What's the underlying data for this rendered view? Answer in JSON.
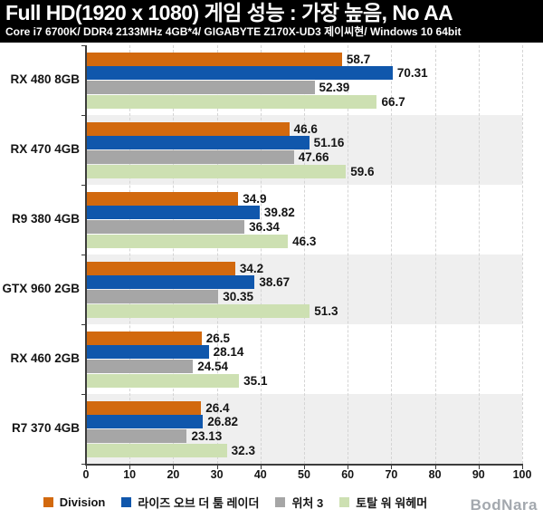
{
  "header": {
    "title": "Full HD(1920 x 1080) 게임 성능 : 가장 높음, No AA",
    "subtitle": "Core i7 6700K/ DDR4 2133MHz 4GB*4/ GIGABYTE Z170X-UD3 제이씨현/ Windows 10 64bit",
    "bg_color": "#000000",
    "text_color": "#ffffff"
  },
  "chart_data": {
    "type": "bar",
    "orientation": "horizontal",
    "title": "Full HD(1920 x 1080) 게임 성능 : 가장 높음, No AA",
    "categories": [
      "RX 480 8GB",
      "RX 470 4GB",
      "R9 380 4GB",
      "GTX 960 2GB",
      "RX 460 2GB",
      "R7 370 4GB"
    ],
    "series": [
      {
        "name": "Division",
        "color": "#d2690e",
        "values": [
          58.7,
          46.6,
          34.9,
          34.2,
          26.5,
          26.4
        ]
      },
      {
        "name": "라이즈 오브 더 툼 레이더",
        "color": "#1057ac",
        "values": [
          70.31,
          51.16,
          39.82,
          38.67,
          28.14,
          26.82
        ]
      },
      {
        "name": "위처 3",
        "color": "#a6a6a6",
        "values": [
          52.39,
          47.66,
          36.34,
          30.35,
          24.54,
          23.13
        ]
      },
      {
        "name": "토탈 워 워헤머",
        "color": "#cde0b2",
        "values": [
          66.7,
          59.6,
          46.3,
          51.3,
          35.1,
          32.3
        ]
      }
    ],
    "xlabel": "",
    "ylabel": "",
    "xlim": [
      0,
      100
    ],
    "x_ticks": [
      0,
      10,
      20,
      30,
      40,
      50,
      60,
      70,
      80,
      90,
      100
    ],
    "grid": "vertical-dashed",
    "gridline_color": "#d4d4d4",
    "band_colors": [
      "#ffffff",
      "#efefef"
    ],
    "axis_color": "#3c3c3c",
    "value_labels": true,
    "legend_position": "bottom"
  },
  "footer": {
    "logo_text": "BodNara",
    "logo_color": "#a3a8ae"
  }
}
